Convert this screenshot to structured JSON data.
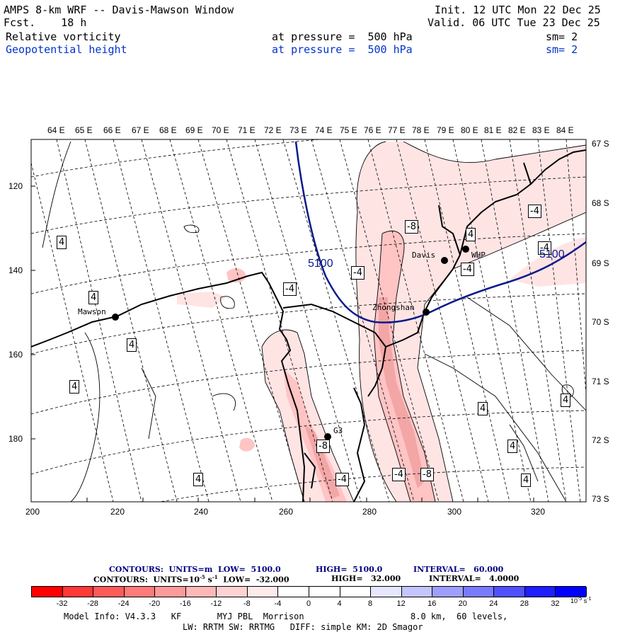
{
  "header": {
    "title": "AMPS 8-km WRF -- Davis-Mawson Window",
    "fcst": "Fcst.    18 h",
    "init": "Init. 12 UTC Mon 22 Dec 25",
    "valid": "Valid. 06 UTC Tue 23 Dec 25",
    "field1": {
      "name": "Relative vorticity",
      "level": "at pressure =  500 hPa",
      "sm": "sm= 2"
    },
    "field2": {
      "name": "Geopotential height",
      "level": "at pressure =  500 hPa",
      "sm": "sm= 2"
    }
  },
  "axes": {
    "top_lon": [
      "64 E",
      "65 E",
      "66 E",
      "67 E",
      "68 E",
      "69 E",
      "70 E",
      "71 E",
      "72 E",
      "73 E",
      "74 E",
      "75 E",
      "76 E",
      "77 E",
      "78 E",
      "79 E",
      "80 E",
      "81 E",
      "82 E",
      "83 E",
      "84 E"
    ],
    "right_lat": [
      "67 S",
      "68 S",
      "69 S",
      "70 S",
      "71 S",
      "72 S",
      "73 S"
    ],
    "left_y": [
      "120",
      "140",
      "160",
      "180"
    ],
    "bottom_x": [
      "200",
      "220",
      "240",
      "260",
      "280",
      "300",
      "320"
    ]
  },
  "stations": [
    {
      "name": "Mawson"
    },
    {
      "name": "Davis"
    },
    {
      "name": "WHP"
    },
    {
      "name": "Zhongshan"
    },
    {
      "name": "G3"
    }
  ],
  "contour_labels": [
    "4",
    "4",
    "4",
    "4",
    "4",
    "4",
    "4",
    "4",
    "4",
    "-4",
    "-4",
    "-4",
    "-4",
    "-4",
    "-4",
    "-4",
    "-8",
    "-8",
    "-8",
    "4",
    "4",
    "4"
  ],
  "height_labels": [
    "5100",
    "5100"
  ],
  "footer": {
    "line1": {
      "contours": "CONTOURS:  UNITS=m  LOW=  5100.0",
      "high": "HIGH=  5100.0",
      "interval": "INTERVAL=   60.000"
    },
    "line2": {
      "contours": "CONTOURS:  UNITS=10",
      "exp": "-5",
      "unit_s": " s",
      "exp2": "-1",
      "low": "  LOW=  -32.000",
      "high": "HIGH=   32.000",
      "interval": "INTERVAL=   4.0000"
    },
    "model_info": "Model Info: V4.3.3   KF       MYJ PBL  Morrison",
    "res": "8.0 km,  60 levels,",
    "model_info2": "LW: RRTM SW: RRTMG   DIFF: simple KM: 2D Smagor"
  },
  "colorbar": {
    "labels": [
      "-32",
      "-28",
      "-24",
      "-20",
      "-16",
      "-12",
      "-8",
      "-4",
      "0",
      "4",
      "8",
      "12",
      "16",
      "20",
      "24",
      "28",
      "32"
    ],
    "unit": "10",
    "unit_exp": "-5",
    "unit_s": " s",
    "unit_exp2": "-1",
    "colors": [
      "#ff0000",
      "#ff3030",
      "#ff5a5a",
      "#ff7c7c",
      "#ff9c9c",
      "#ffbaba",
      "#ffd4d4",
      "#ffecec",
      "#ffffff",
      "#ffffff",
      "#ececff",
      "#c8c8ff",
      "#a0a0ff",
      "#7c7cff",
      "#5858ff",
      "#2c2cff",
      "#0000ff"
    ]
  }
}
